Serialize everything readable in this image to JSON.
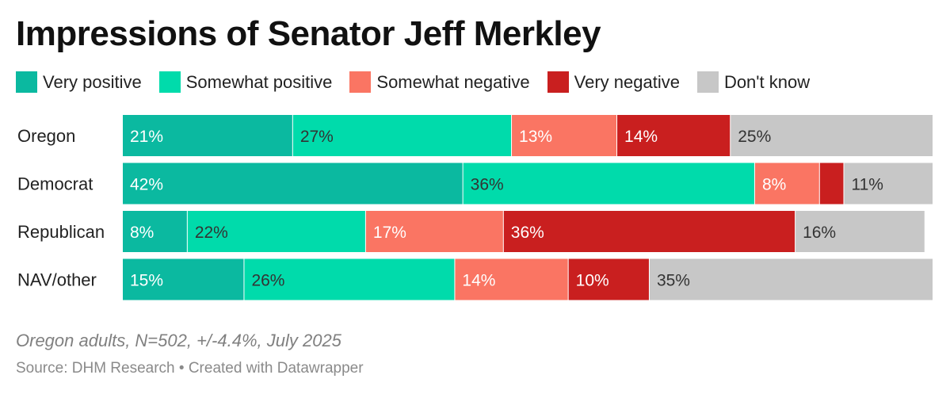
{
  "chart_data": {
    "type": "bar",
    "stacked": true,
    "orientation": "horizontal",
    "title": "Impressions of Senator Jeff Merkley",
    "categories": [
      "Oregon",
      "Democrat",
      "Republican",
      "NAV/other"
    ],
    "series": [
      {
        "name": "Very positive",
        "color": "#0bb9a0",
        "label_color": "#ffffff",
        "values": [
          21,
          42,
          8,
          15
        ]
      },
      {
        "name": "Somewhat positive",
        "color": "#00dbab",
        "label_color": "#333333",
        "values": [
          27,
          36,
          22,
          26
        ]
      },
      {
        "name": "Somewhat negative",
        "color": "#fa7563",
        "label_color": "#ffffff",
        "values": [
          13,
          8,
          17,
          14
        ]
      },
      {
        "name": "Very negative",
        "color": "#c91f1f",
        "label_color": "#ffffff",
        "values": [
          14,
          3,
          36,
          10
        ]
      },
      {
        "name": "Don't know",
        "color": "#c7c7c7",
        "label_color": "#333333",
        "values": [
          25,
          11,
          16,
          35
        ]
      }
    ],
    "hidden_labels": [
      [
        1,
        3
      ]
    ],
    "value_suffix": "%",
    "xlim": [
      0,
      100
    ],
    "notes": "Oregon adults, N=502, +/-4.4%, July 2025",
    "source": "Source: DHM Research • Created with Datawrapper"
  }
}
